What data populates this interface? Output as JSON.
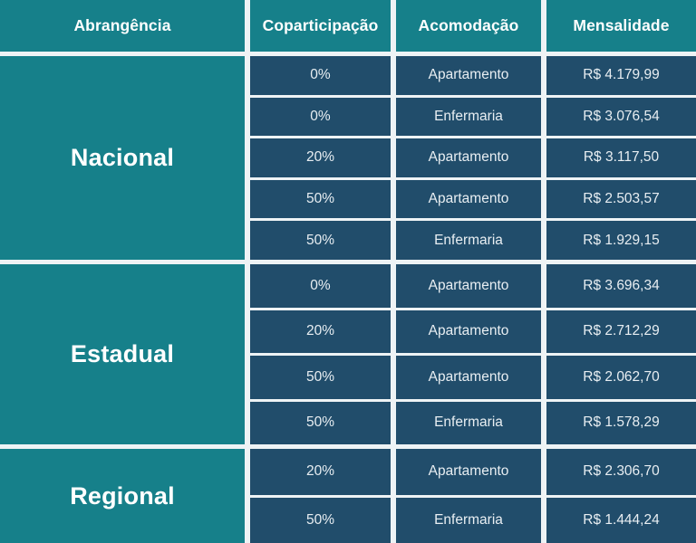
{
  "header": {
    "columns": [
      "Abrangência",
      "Coparticipação",
      "Acomodação",
      "Mensalidade"
    ]
  },
  "sections": [
    {
      "label": "Nacional",
      "rows": [
        {
          "coparticipacao": "0%",
          "acomodacao": "Apartamento",
          "mensalidade": "R$ 4.179,99"
        },
        {
          "coparticipacao": "0%",
          "acomodacao": "Enfermaria",
          "mensalidade": "R$ 3.076,54"
        },
        {
          "coparticipacao": "20%",
          "acomodacao": "Apartamento",
          "mensalidade": "R$ 3.117,50"
        },
        {
          "coparticipacao": "50%",
          "acomodacao": "Apartamento",
          "mensalidade": "R$ 2.503,57"
        },
        {
          "coparticipacao": "50%",
          "acomodacao": "Enfermaria",
          "mensalidade": "R$ 1.929,15"
        }
      ]
    },
    {
      "label": "Estadual",
      "rows": [
        {
          "coparticipacao": "0%",
          "acomodacao": "Apartamento",
          "mensalidade": "R$ 3.696,34"
        },
        {
          "coparticipacao": "20%",
          "acomodacao": "Apartamento",
          "mensalidade": "R$ 2.712,29"
        },
        {
          "coparticipacao": "50%",
          "acomodacao": "Apartamento",
          "mensalidade": "R$ 2.062,70"
        },
        {
          "coparticipacao": "50%",
          "acomodacao": "Enfermaria",
          "mensalidade": "R$ 1.578,29"
        }
      ]
    },
    {
      "label": "Regional",
      "rows": [
        {
          "coparticipacao": "20%",
          "acomodacao": "Apartamento",
          "mensalidade": "R$ 2.306,70"
        },
        {
          "coparticipacao": "50%",
          "acomodacao": "Enfermaria",
          "mensalidade": "R$ 1.444,24"
        }
      ]
    }
  ],
  "colors": {
    "teal": "#16808a",
    "navy": "#214d6b",
    "divider": "#eef3f5",
    "header_text": "#ffffff",
    "cell_text": "#e8eef2"
  },
  "chart_data": {
    "type": "table",
    "title": "",
    "columns": [
      "Abrangência",
      "Coparticipação",
      "Acomodação",
      "Mensalidade"
    ],
    "rows": [
      [
        "Nacional",
        "0%",
        "Apartamento",
        "R$ 4.179,99"
      ],
      [
        "Nacional",
        "0%",
        "Enfermaria",
        "R$ 3.076,54"
      ],
      [
        "Nacional",
        "20%",
        "Apartamento",
        "R$ 3.117,50"
      ],
      [
        "Nacional",
        "50%",
        "Apartamento",
        "R$ 2.503,57"
      ],
      [
        "Nacional",
        "50%",
        "Enfermaria",
        "R$ 1.929,15"
      ],
      [
        "Estadual",
        "0%",
        "Apartamento",
        "R$ 3.696,34"
      ],
      [
        "Estadual",
        "20%",
        "Apartamento",
        "R$ 2.712,29"
      ],
      [
        "Estadual",
        "50%",
        "Apartamento",
        "R$ 2.062,70"
      ],
      [
        "Estadual",
        "50%",
        "Enfermaria",
        "R$ 1.578,29"
      ],
      [
        "Regional",
        "20%",
        "Apartamento",
        "R$ 2.306,70"
      ],
      [
        "Regional",
        "50%",
        "Enfermaria",
        "R$ 1.444,24"
      ]
    ]
  }
}
